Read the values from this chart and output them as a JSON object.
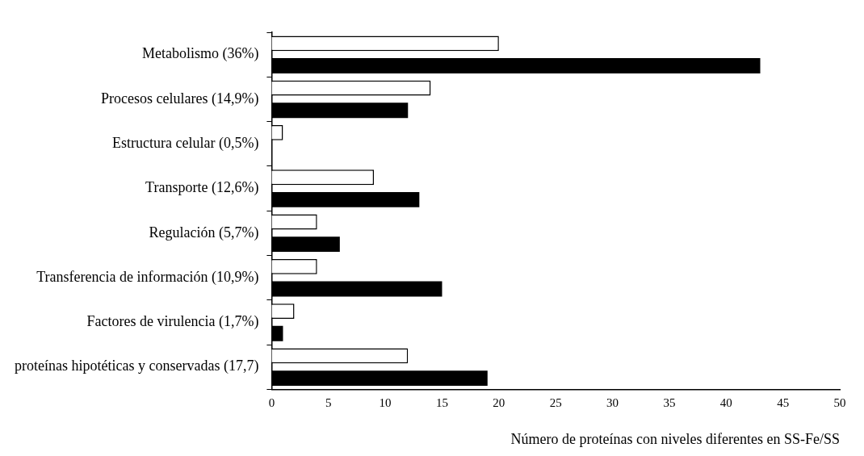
{
  "chart_data": {
    "type": "bar",
    "orientation": "horizontal",
    "xlabel": "Número de proteínas con niveles diferentes en SS-Fe/SS",
    "categories": [
      "Metabolismo (36%)",
      "Procesos celulares (14,9%)",
      "Estructura celular (0,5%)",
      "Transporte (12,6%)",
      "Regulación (5,7%)",
      "Transferencia de información (10,9%)",
      "Factores de virulencia (1,7%)",
      "proteínas hipotéticas y conservadas (17,7)"
    ],
    "series": [
      {
        "color": "#ffffff",
        "values": [
          20,
          14,
          1,
          9,
          4,
          4,
          2,
          12
        ]
      },
      {
        "color": "#000000",
        "values": [
          43,
          12,
          0,
          13,
          6,
          15,
          1,
          19
        ]
      }
    ],
    "xlim": [
      0,
      50
    ],
    "xticks": [
      0,
      5,
      10,
      15,
      20,
      25,
      30,
      35,
      40,
      45,
      50
    ],
    "grid": false,
    "legend": false
  }
}
